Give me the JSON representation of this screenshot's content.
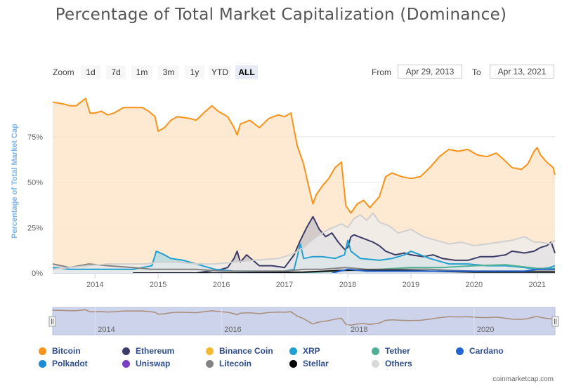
{
  "page": {
    "title": "Percentage of Total Market Capitalization (Dominance)"
  },
  "zoom": {
    "label": "Zoom",
    "buttons": [
      {
        "label": "1d",
        "active": false
      },
      {
        "label": "7d",
        "active": false
      },
      {
        "label": "1m",
        "active": false
      },
      {
        "label": "3m",
        "active": false
      },
      {
        "label": "1y",
        "active": false
      },
      {
        "label": "YTD",
        "active": false
      },
      {
        "label": "ALL",
        "active": true
      }
    ]
  },
  "range": {
    "from_label": "From",
    "from_value": "Apr 29, 2013",
    "to_label": "To",
    "to_value": "Apr 13, 2021"
  },
  "chart_data": {
    "type": "area",
    "ylabel": "Percentage of Total Market Cap",
    "ylim": [
      0,
      100
    ],
    "y_ticks": [
      "0%",
      "25%",
      "50%",
      "75%"
    ],
    "y_tick_values": [
      0,
      25,
      50,
      75
    ],
    "x_ticks": [
      "2014",
      "2015",
      "2016",
      "2017",
      "2018",
      "2019",
      "2020",
      "2021"
    ],
    "x_tick_values": [
      2014,
      2015,
      2016,
      2017,
      2018,
      2019,
      2020,
      2021
    ],
    "xlim": [
      2013.33,
      2021.28
    ],
    "grid": true,
    "legend_position": "bottom",
    "series": [
      {
        "name": "Bitcoin",
        "color": "#f7931a",
        "fill": "#fde2c4",
        "points": [
          [
            2013.33,
            94
          ],
          [
            2013.5,
            93
          ],
          [
            2013.6,
            92
          ],
          [
            2013.7,
            92
          ],
          [
            2013.85,
            96
          ],
          [
            2013.92,
            88
          ],
          [
            2014.0,
            88
          ],
          [
            2014.1,
            89
          ],
          [
            2014.2,
            87
          ],
          [
            2014.3,
            88
          ],
          [
            2014.45,
            91
          ],
          [
            2014.6,
            91
          ],
          [
            2014.75,
            91
          ],
          [
            2014.85,
            89
          ],
          [
            2014.95,
            86
          ],
          [
            2015.0,
            78
          ],
          [
            2015.1,
            80
          ],
          [
            2015.2,
            84
          ],
          [
            2015.3,
            86
          ],
          [
            2015.5,
            85
          ],
          [
            2015.6,
            84
          ],
          [
            2015.75,
            89
          ],
          [
            2015.85,
            92
          ],
          [
            2015.95,
            89
          ],
          [
            2016.1,
            86
          ],
          [
            2016.2,
            80
          ],
          [
            2016.25,
            76
          ],
          [
            2016.3,
            82
          ],
          [
            2016.45,
            84
          ],
          [
            2016.6,
            80
          ],
          [
            2016.75,
            85
          ],
          [
            2016.9,
            87
          ],
          [
            2017.0,
            86
          ],
          [
            2017.1,
            88
          ],
          [
            2017.2,
            70
          ],
          [
            2017.3,
            60
          ],
          [
            2017.4,
            45
          ],
          [
            2017.45,
            38
          ],
          [
            2017.5,
            43
          ],
          [
            2017.6,
            48
          ],
          [
            2017.7,
            52
          ],
          [
            2017.8,
            58
          ],
          [
            2017.9,
            61
          ],
          [
            2017.97,
            37
          ],
          [
            2018.05,
            33
          ],
          [
            2018.15,
            38
          ],
          [
            2018.25,
            40
          ],
          [
            2018.35,
            36
          ],
          [
            2018.5,
            42
          ],
          [
            2018.6,
            53
          ],
          [
            2018.7,
            55
          ],
          [
            2018.85,
            53
          ],
          [
            2019.0,
            52
          ],
          [
            2019.15,
            53
          ],
          [
            2019.3,
            58
          ],
          [
            2019.45,
            64
          ],
          [
            2019.6,
            68
          ],
          [
            2019.75,
            67
          ],
          [
            2019.9,
            68
          ],
          [
            2020.05,
            65
          ],
          [
            2020.2,
            64
          ],
          [
            2020.35,
            66
          ],
          [
            2020.45,
            63
          ],
          [
            2020.6,
            58
          ],
          [
            2020.75,
            57
          ],
          [
            2020.85,
            60
          ],
          [
            2020.95,
            67
          ],
          [
            2021.0,
            69
          ],
          [
            2021.05,
            65
          ],
          [
            2021.15,
            61
          ],
          [
            2021.25,
            58
          ],
          [
            2021.28,
            54
          ]
        ]
      },
      {
        "name": "Ethereum",
        "color": "#3b3d66",
        "fill": "#c5c0c8",
        "points": [
          [
            2015.6,
            0
          ],
          [
            2015.8,
            1
          ],
          [
            2016.0,
            2
          ],
          [
            2016.1,
            3
          ],
          [
            2016.2,
            8
          ],
          [
            2016.25,
            12
          ],
          [
            2016.3,
            6
          ],
          [
            2016.4,
            10
          ],
          [
            2016.5,
            7
          ],
          [
            2016.6,
            4
          ],
          [
            2016.8,
            4
          ],
          [
            2017.0,
            3
          ],
          [
            2017.15,
            10
          ],
          [
            2017.25,
            18
          ],
          [
            2017.35,
            25
          ],
          [
            2017.45,
            31
          ],
          [
            2017.55,
            24
          ],
          [
            2017.65,
            20
          ],
          [
            2017.75,
            22
          ],
          [
            2017.85,
            17
          ],
          [
            2017.95,
            13
          ],
          [
            2018.0,
            14
          ],
          [
            2018.05,
            20
          ],
          [
            2018.1,
            21
          ],
          [
            2018.25,
            19
          ],
          [
            2018.4,
            17
          ],
          [
            2018.5,
            15
          ],
          [
            2018.6,
            12
          ],
          [
            2018.75,
            10
          ],
          [
            2018.9,
            11
          ],
          [
            2019.0,
            10
          ],
          [
            2019.2,
            9
          ],
          [
            2019.35,
            10
          ],
          [
            2019.5,
            8
          ],
          [
            2019.7,
            7
          ],
          [
            2019.9,
            7
          ],
          [
            2020.1,
            9
          ],
          [
            2020.3,
            9
          ],
          [
            2020.5,
            10
          ],
          [
            2020.6,
            12
          ],
          [
            2020.8,
            11
          ],
          [
            2020.95,
            12
          ],
          [
            2021.05,
            14
          ],
          [
            2021.15,
            15
          ],
          [
            2021.22,
            17
          ],
          [
            2021.28,
            11
          ]
        ]
      },
      {
        "name": "XRP",
        "color": "#23a0d0",
        "fill": "#a9d7e2",
        "points": [
          [
            2013.33,
            3
          ],
          [
            2013.6,
            2
          ],
          [
            2013.9,
            2
          ],
          [
            2014.2,
            2
          ],
          [
            2014.6,
            2
          ],
          [
            2014.9,
            4
          ],
          [
            2014.97,
            12
          ],
          [
            2015.1,
            10
          ],
          [
            2015.2,
            8
          ],
          [
            2015.4,
            7
          ],
          [
            2015.6,
            5
          ],
          [
            2015.9,
            2
          ],
          [
            2016.2,
            1
          ],
          [
            2016.6,
            1
          ],
          [
            2017.0,
            1
          ],
          [
            2017.15,
            2
          ],
          [
            2017.25,
            16
          ],
          [
            2017.3,
            8
          ],
          [
            2017.45,
            9
          ],
          [
            2017.6,
            9
          ],
          [
            2017.8,
            8
          ],
          [
            2017.95,
            10
          ],
          [
            2018.0,
            18
          ],
          [
            2018.05,
            12
          ],
          [
            2018.2,
            8
          ],
          [
            2018.5,
            7
          ],
          [
            2018.7,
            8
          ],
          [
            2018.9,
            10
          ],
          [
            2019.0,
            12
          ],
          [
            2019.3,
            8
          ],
          [
            2019.6,
            5
          ],
          [
            2019.9,
            5
          ],
          [
            2020.2,
            4
          ],
          [
            2020.5,
            4
          ],
          [
            2020.8,
            3
          ],
          [
            2021.0,
            2
          ],
          [
            2021.2,
            3
          ],
          [
            2021.28,
            4
          ]
        ]
      },
      {
        "name": "Tether",
        "color": "#50af95",
        "fill": "#cfe8df",
        "points": [
          [
            2015.2,
            0
          ],
          [
            2016.0,
            0
          ],
          [
            2017.0,
            0
          ],
          [
            2017.5,
            0.5
          ],
          [
            2018.0,
            1.5
          ],
          [
            2018.5,
            2
          ],
          [
            2019.0,
            3
          ],
          [
            2019.5,
            3
          ],
          [
            2020.0,
            4
          ],
          [
            2020.5,
            4.5
          ],
          [
            2021.0,
            2.5
          ],
          [
            2021.28,
            2.5
          ]
        ]
      },
      {
        "name": "Litecoin",
        "color": "#838383",
        "fill": "#dcdcdc",
        "points": [
          [
            2013.33,
            5
          ],
          [
            2013.6,
            3
          ],
          [
            2013.9,
            5
          ],
          [
            2014.2,
            4
          ],
          [
            2014.6,
            3
          ],
          [
            2014.9,
            2
          ],
          [
            2015.3,
            2
          ],
          [
            2015.6,
            2
          ],
          [
            2016.0,
            1
          ],
          [
            2016.6,
            1
          ],
          [
            2017.0,
            1
          ],
          [
            2017.3,
            2
          ],
          [
            2017.6,
            2
          ],
          [
            2017.95,
            3
          ],
          [
            2018.3,
            2
          ],
          [
            2018.8,
            2
          ],
          [
            2019.3,
            2
          ],
          [
            2019.6,
            1.5
          ],
          [
            2020.0,
            1
          ],
          [
            2020.5,
            1
          ],
          [
            2021.0,
            1
          ],
          [
            2021.28,
            1
          ]
        ]
      },
      {
        "name": "Stellar",
        "color": "#111111",
        "fill": "#999999",
        "points": [
          [
            2014.6,
            0
          ],
          [
            2016.0,
            0
          ],
          [
            2017.3,
            0.5
          ],
          [
            2017.95,
            1.5
          ],
          [
            2018.3,
            1.5
          ],
          [
            2018.8,
            1.5
          ],
          [
            2019.3,
            1
          ],
          [
            2020.0,
            0.5
          ],
          [
            2021.0,
            0.5
          ],
          [
            2021.28,
            0.5
          ]
        ]
      },
      {
        "name": "Cardano",
        "color": "#2466d1",
        "fill": "#c2d5f0",
        "points": [
          [
            2017.75,
            0
          ],
          [
            2018.0,
            2
          ],
          [
            2018.3,
            1
          ],
          [
            2018.8,
            1
          ],
          [
            2019.3,
            1
          ],
          [
            2020.0,
            1
          ],
          [
            2020.8,
            1
          ],
          [
            2021.0,
            2
          ],
          [
            2021.28,
            2
          ]
        ]
      },
      {
        "name": "Others",
        "color": "#d0d0d0",
        "fill": "#ececec",
        "points": [
          [
            2013.33,
            2
          ],
          [
            2013.6,
            3
          ],
          [
            2013.9,
            4
          ],
          [
            2014.2,
            5
          ],
          [
            2014.5,
            5
          ],
          [
            2014.8,
            5
          ],
          [
            2015.0,
            6
          ],
          [
            2015.3,
            6
          ],
          [
            2015.6,
            5
          ],
          [
            2015.9,
            5
          ],
          [
            2016.2,
            6
          ],
          [
            2016.5,
            7
          ],
          [
            2016.9,
            8
          ],
          [
            2017.1,
            10
          ],
          [
            2017.3,
            14
          ],
          [
            2017.5,
            20
          ],
          [
            2017.7,
            24
          ],
          [
            2017.9,
            27
          ],
          [
            2018.0,
            25
          ],
          [
            2018.1,
            30
          ],
          [
            2018.2,
            32
          ],
          [
            2018.3,
            29
          ],
          [
            2018.4,
            33
          ],
          [
            2018.5,
            28
          ],
          [
            2018.65,
            26
          ],
          [
            2018.8,
            22
          ],
          [
            2019.0,
            24
          ],
          [
            2019.2,
            20
          ],
          [
            2019.4,
            18
          ],
          [
            2019.6,
            16
          ],
          [
            2019.8,
            17
          ],
          [
            2020.0,
            15
          ],
          [
            2020.2,
            16
          ],
          [
            2020.4,
            17
          ],
          [
            2020.6,
            18
          ],
          [
            2020.8,
            20
          ],
          [
            2020.95,
            17
          ],
          [
            2021.05,
            17
          ],
          [
            2021.2,
            16
          ],
          [
            2021.28,
            18
          ]
        ]
      }
    ],
    "navigator": {
      "x_ticks": [
        "2014",
        "2016",
        "2018",
        "2020"
      ],
      "x_tick_values": [
        2014,
        2016,
        2018,
        2020
      ]
    }
  },
  "legend": [
    {
      "name": "Bitcoin",
      "color": "#f7931a"
    },
    {
      "name": "Ethereum",
      "color": "#3b3d66"
    },
    {
      "name": "Binance Coin",
      "color": "#f3ba2f"
    },
    {
      "name": "XRP",
      "color": "#23a0d0"
    },
    {
      "name": "Tether",
      "color": "#50af95"
    },
    {
      "name": "Cardano",
      "color": "#2466d1"
    },
    {
      "name": "Polkadot",
      "color": "#1a8dd8"
    },
    {
      "name": "Uniswap",
      "color": "#7a3fc2"
    },
    {
      "name": "Litecoin",
      "color": "#838383"
    },
    {
      "name": "Stellar",
      "color": "#000000"
    },
    {
      "name": "Others",
      "color": "#d9d9d9"
    }
  ],
  "credits": "coinmarketcap.com"
}
